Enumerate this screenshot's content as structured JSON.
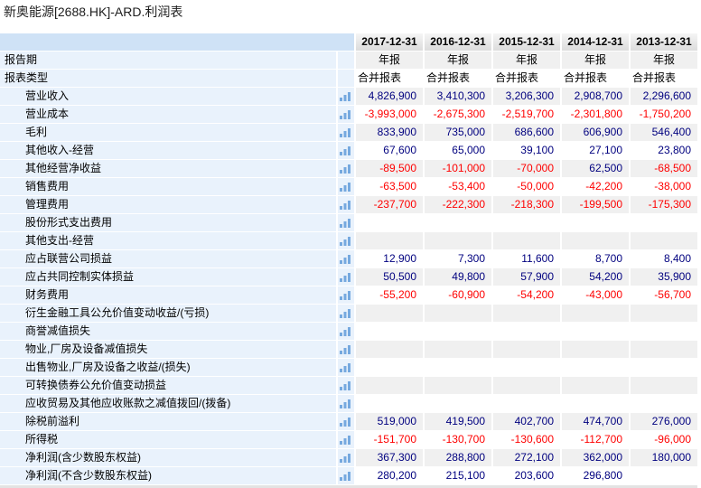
{
  "title": "新奥能源[2688.HK]-ARD.利润表",
  "colors": {
    "positive_value": "#00007f",
    "negative_value": "#fe0000",
    "label_column_bg": "#e9f2fc",
    "header_label_bg": "#cfe2f6",
    "header_date_bg": "#e3e3e3",
    "shaded_row_bg": "#f0f0f0",
    "bar_icon": "#76a9df"
  },
  "icons": {
    "bar_chart": "bar-chart-icon"
  },
  "table": {
    "columns": [
      "2017-12-31",
      "2016-12-31",
      "2015-12-31",
      "2014-12-31",
      "2013-12-31"
    ],
    "meta_rows": [
      {
        "label": "报告期",
        "align": "center",
        "values": [
          "年报",
          "年报",
          "年报",
          "年报",
          "年报"
        ]
      },
      {
        "label": "报表类型",
        "align": "left",
        "values": [
          "合并报表",
          "合并报表",
          "合并报表",
          "合并报表",
          "合并报表"
        ]
      }
    ],
    "rows": [
      {
        "label": "营业收入",
        "values": [
          "4,826,900",
          "3,410,300",
          "3,206,300",
          "2,908,700",
          "2,296,600"
        ]
      },
      {
        "label": "营业成本",
        "values": [
          "-3,993,000",
          "-2,675,300",
          "-2,519,700",
          "-2,301,800",
          "-1,750,200"
        ]
      },
      {
        "label": "毛利",
        "values": [
          "833,900",
          "735,000",
          "686,600",
          "606,900",
          "546,400"
        ]
      },
      {
        "label": "其他收入-经营",
        "values": [
          "67,600",
          "65,000",
          "39,100",
          "27,100",
          "23,800"
        ]
      },
      {
        "label": "其他经营净收益",
        "values": [
          "-89,500",
          "-101,000",
          "-70,000",
          "62,500",
          "-68,500"
        ]
      },
      {
        "label": "销售费用",
        "values": [
          "-63,500",
          "-53,400",
          "-50,000",
          "-42,200",
          "-38,000"
        ]
      },
      {
        "label": "管理费用",
        "values": [
          "-237,700",
          "-222,300",
          "-218,300",
          "-199,500",
          "-175,300"
        ]
      },
      {
        "label": "股份形式支出费用",
        "values": [
          "",
          "",
          "",
          "",
          ""
        ]
      },
      {
        "label": "其他支出-经营",
        "values": [
          "",
          "",
          "",
          "",
          ""
        ]
      },
      {
        "label": "应占联营公司损益",
        "values": [
          "12,900",
          "7,300",
          "11,600",
          "8,700",
          "8,400"
        ]
      },
      {
        "label": "应占共同控制实体损益",
        "values": [
          "50,500",
          "49,800",
          "57,900",
          "54,200",
          "35,900"
        ]
      },
      {
        "label": "财务费用",
        "values": [
          "-55,200",
          "-60,900",
          "-54,200",
          "-43,000",
          "-56,700"
        ]
      },
      {
        "label": "衍生金融工具公允价值变动收益/(亏损)",
        "values": [
          "",
          "",
          "",
          "",
          ""
        ]
      },
      {
        "label": "商誉减值损失",
        "values": [
          "",
          "",
          "",
          "",
          ""
        ]
      },
      {
        "label": "物业,厂房及设备减值损失",
        "values": [
          "",
          "",
          "",
          "",
          ""
        ]
      },
      {
        "label": "出售物业,厂房及设备之收益/(损失)",
        "values": [
          "",
          "",
          "",
          "",
          ""
        ]
      },
      {
        "label": "可转换债券公允价值变动损益",
        "values": [
          "",
          "",
          "",
          "",
          ""
        ]
      },
      {
        "label": "应收贸易及其他应收账款之减值拨回/(拨备)",
        "values": [
          "",
          "",
          "",
          "",
          ""
        ]
      },
      {
        "label": "除税前溢利",
        "values": [
          "519,000",
          "419,500",
          "402,700",
          "474,700",
          "276,000"
        ]
      },
      {
        "label": "所得税",
        "values": [
          "-151,700",
          "-130,700",
          "-130,600",
          "-112,700",
          "-96,000"
        ]
      },
      {
        "label": "净利润(含少数股东权益)",
        "values": [
          "367,300",
          "288,800",
          "272,100",
          "362,000",
          "180,000"
        ]
      },
      {
        "label": "净利润(不含少数股东权益)",
        "values": [
          "280,200",
          "215,100",
          "203,600",
          "296,800",
          ""
        ]
      }
    ]
  }
}
